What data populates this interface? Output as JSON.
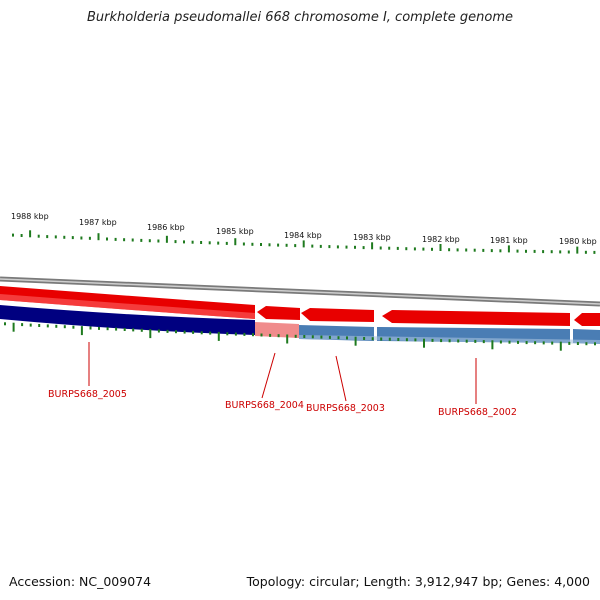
{
  "title": "Burkholderia pseudomallei 668 chromosome I, complete genome",
  "accession": "Accession: NC_009074",
  "summary": "Topology: circular; Length: 3,912,947 bp; Genes: 4,000",
  "ruler": [
    "1988 kbp",
    "1987 kbp",
    "1986 kbp",
    "1985 kbp",
    "1984 kbp",
    "1983 kbp",
    "1982 kbp",
    "1981 kbp",
    "1980 kbp"
  ],
  "genes": [
    "BURPS668_2005",
    "BURPS668_2004",
    "BURPS668_2003",
    "BURPS668_2002"
  ],
  "colors": {
    "forward_feature": "#e80000",
    "forward_feature_light": "#f08080",
    "reverse_strand": "#4a7db4",
    "reverse_highlight": "#000080",
    "reverse_highlight_light": "#f08c8c",
    "backbone": "#8a8a8a",
    "tick": "#1e7a1e",
    "gene_label": "#cc0000"
  }
}
